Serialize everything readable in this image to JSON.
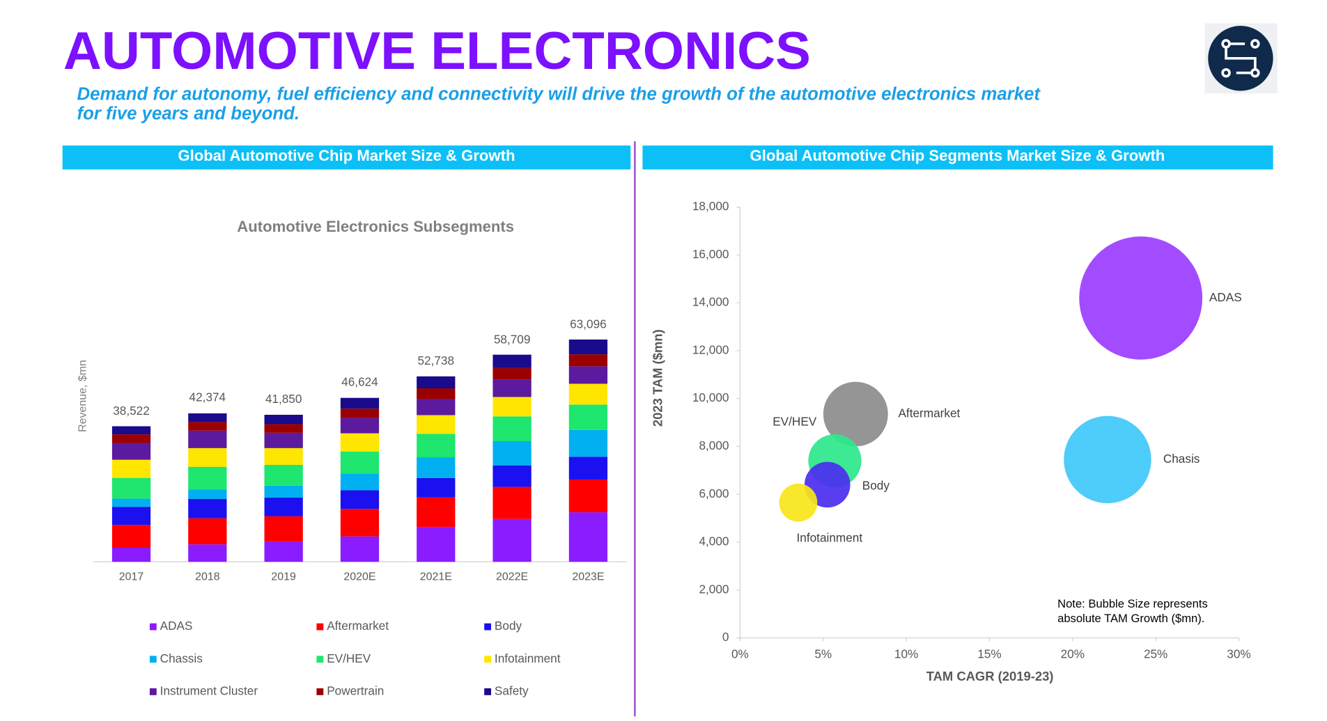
{
  "header": {
    "title": "AUTOMOTIVE ELECTRONICS",
    "subtitle": [
      "Demand for autonomy, fuel efficiency and connectivity will drive the growth of the automotive electronics market",
      "for five years and beyond."
    ]
  },
  "chart_data": [
    {
      "type": "stacked_bar",
      "panel_title": "Global Automotive Chip Market Size & Growth",
      "title": "Automotive Electronics Subsegments",
      "y_label": "Revenue, $mn",
      "categories": [
        "2017",
        "2018",
        "2019",
        "2020E",
        "2021E",
        "2022E",
        "2023E"
      ],
      "totals": [
        {
          "value": 38522,
          "label": "38,522"
        },
        {
          "value": 42374,
          "label": "42,374"
        },
        {
          "value": 41850,
          "label": "41,850"
        },
        {
          "value": 46624,
          "label": "46,624"
        },
        {
          "value": 52738,
          "label": "52,738"
        },
        {
          "value": 58709,
          "label": "58,709"
        },
        {
          "value": 63096,
          "label": "63,096"
        }
      ],
      "ylim": [
        0,
        70000
      ],
      "series": [
        {
          "name": "ADAS",
          "color": "#8a1cff",
          "values": [
            4000,
            4950,
            5700,
            7200,
            9900,
            12150,
            14050
          ]
        },
        {
          "name": "Aftermarket",
          "color": "#ff0000",
          "values": [
            6450,
            7400,
            7200,
            7800,
            8350,
            9100,
            9300
          ]
        },
        {
          "name": "Body",
          "color": "#1a10f0",
          "values": [
            5150,
            5500,
            5300,
            5300,
            5500,
            6100,
            6450
          ]
        },
        {
          "name": "Chassis",
          "color": "#00b0f0",
          "values": [
            2300,
            2650,
            3400,
            4750,
            5900,
            6850,
            7600
          ]
        },
        {
          "name": "EV/HEV",
          "color": "#1ee66e",
          "values": [
            5900,
            6450,
            5900,
            6250,
            6650,
            7050,
            7200
          ]
        },
        {
          "name": "Infotainment",
          "color": "#ffe600",
          "values": [
            5150,
            5300,
            4750,
            5150,
            5300,
            5500,
            5900
          ]
        },
        {
          "name": "Instrument Cluster",
          "color": "#5c1a9e",
          "values": [
            4750,
            4950,
            4350,
            4350,
            4550,
            4950,
            4950
          ]
        },
        {
          "name": "Powertrain",
          "color": "#9b0000",
          "values": [
            2450,
            2450,
            2450,
            2650,
            3050,
            3250,
            3400
          ]
        },
        {
          "name": "Safety",
          "color": "#1a0a8c",
          "values": [
            2300,
            2450,
            2650,
            3050,
            3400,
            3800,
            4200
          ]
        }
      ]
    },
    {
      "type": "bubble",
      "panel_title": "Global Automotive Chip Segments Market Size & Growth",
      "x_label": "TAM CAGR (2019-23)",
      "y_label": "2023 TAM ($mn)",
      "xlim": [
        0,
        30
      ],
      "xticks": [
        {
          "value": 0,
          "label": "0%"
        },
        {
          "value": 5,
          "label": "5%"
        },
        {
          "value": 10,
          "label": "10%"
        },
        {
          "value": 15,
          "label": "15%"
        },
        {
          "value": 20,
          "label": "20%"
        },
        {
          "value": 25,
          "label": "25%"
        },
        {
          "value": 30,
          "label": "30%"
        }
      ],
      "ylim": [
        0,
        18000
      ],
      "yticks": [
        0,
        {
          "value": 2000,
          "label": "2,000"
        },
        {
          "value": 4000,
          "label": "4,000"
        },
        {
          "value": 6000,
          "label": "6,000"
        },
        {
          "value": 8000,
          "label": "8,000"
        },
        {
          "value": 10000,
          "label": "10,000"
        },
        {
          "value": 12000,
          "label": "12,000"
        },
        {
          "value": 14000,
          "label": "14,000"
        },
        {
          "value": 16000,
          "label": "16,000"
        },
        {
          "value": 18000,
          "label": "18,000"
        }
      ],
      "points": [
        {
          "name": "ADAS",
          "x": 24.1,
          "y": 14200,
          "size": 8350,
          "color": "#9b3dff"
        },
        {
          "name": "Chasis",
          "x": 22.1,
          "y": 7450,
          "size": 4200,
          "color": "#3fc8fa"
        },
        {
          "name": "Aftermarket",
          "x": 6.95,
          "y": 9350,
          "size": 2300,
          "color": "#8c8c8c"
        },
        {
          "name": "EV/HEV",
          "x": 5.7,
          "y": 7400,
          "size": 1550,
          "color": "#2de88a"
        },
        {
          "name": "Body",
          "x": 5.25,
          "y": 6400,
          "size": 1150,
          "color": "#4a2cf0"
        },
        {
          "name": "Infotainment",
          "x": 3.5,
          "y": 5650,
          "size": 800,
          "color": "#f8e51a"
        }
      ],
      "note": [
        "Note: Bubble Size represents",
        "absolute TAM Growth ($mn)."
      ]
    }
  ]
}
